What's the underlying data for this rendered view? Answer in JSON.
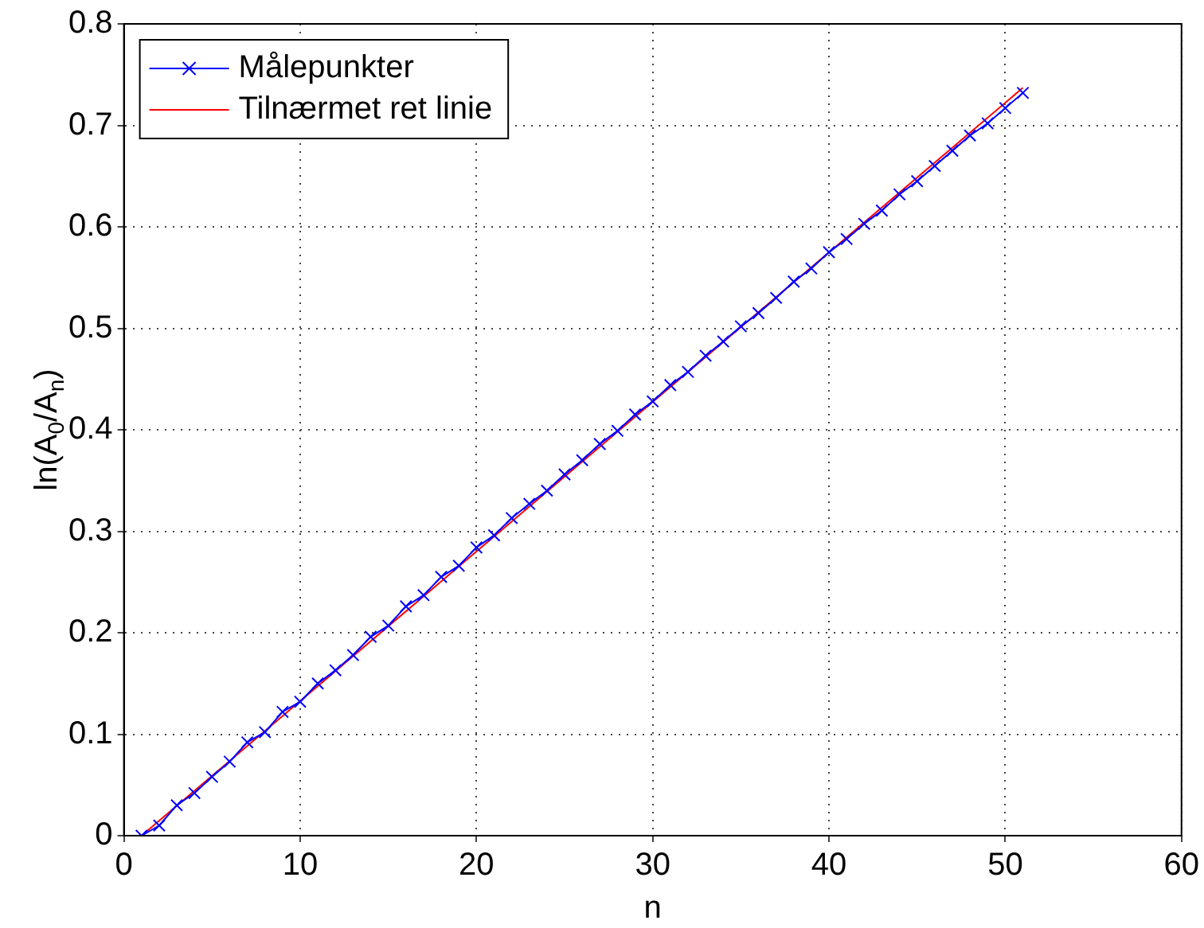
{
  "chart_data": {
    "type": "line",
    "xlabel": "n",
    "ylabel": "ln(A$_{0}$/A$_{n}$)",
    "xlim": [
      0,
      60
    ],
    "xticks": [
      0,
      10,
      20,
      30,
      40,
      50,
      60
    ],
    "ylim": [
      0,
      0.8
    ],
    "yticks": [
      0,
      0.1,
      0.2,
      0.3,
      0.4,
      0.5,
      0.6,
      0.7,
      0.8
    ],
    "grid": true,
    "legend": "top left",
    "series": [
      {
        "name": "Målepunkter",
        "color": "#0000ff",
        "marker": "cross",
        "line_style": "solid",
        "x": [
          1,
          2,
          3,
          4,
          5,
          6,
          7,
          8,
          9,
          10,
          11,
          12,
          13,
          14,
          15,
          16,
          17,
          18,
          19,
          20,
          21,
          22,
          23,
          24,
          25,
          26,
          27,
          28,
          29,
          30,
          31,
          32,
          33,
          34,
          35,
          36,
          37,
          38,
          39,
          40,
          41,
          42,
          43,
          44,
          45,
          46,
          47,
          48,
          49,
          50,
          51
        ],
        "values": [
          0.0,
          0.01,
          0.03,
          0.042,
          0.058,
          0.073,
          0.092,
          0.102,
          0.122,
          0.132,
          0.15,
          0.163,
          0.178,
          0.196,
          0.207,
          0.226,
          0.237,
          0.255,
          0.266,
          0.284,
          0.296,
          0.313,
          0.327,
          0.34,
          0.356,
          0.37,
          0.386,
          0.399,
          0.415,
          0.428,
          0.444,
          0.457,
          0.473,
          0.487,
          0.502,
          0.515,
          0.53,
          0.546,
          0.559,
          0.575,
          0.588,
          0.603,
          0.616,
          0.632,
          0.645,
          0.66,
          0.675,
          0.69,
          0.702,
          0.717,
          0.732
        ]
      },
      {
        "name": "Tilnærmet ret linie",
        "color": "#ff0000",
        "marker": "none",
        "line_style": "solid",
        "x": [
          1,
          51
        ],
        "values": [
          0,
          0.737
        ]
      }
    ]
  }
}
